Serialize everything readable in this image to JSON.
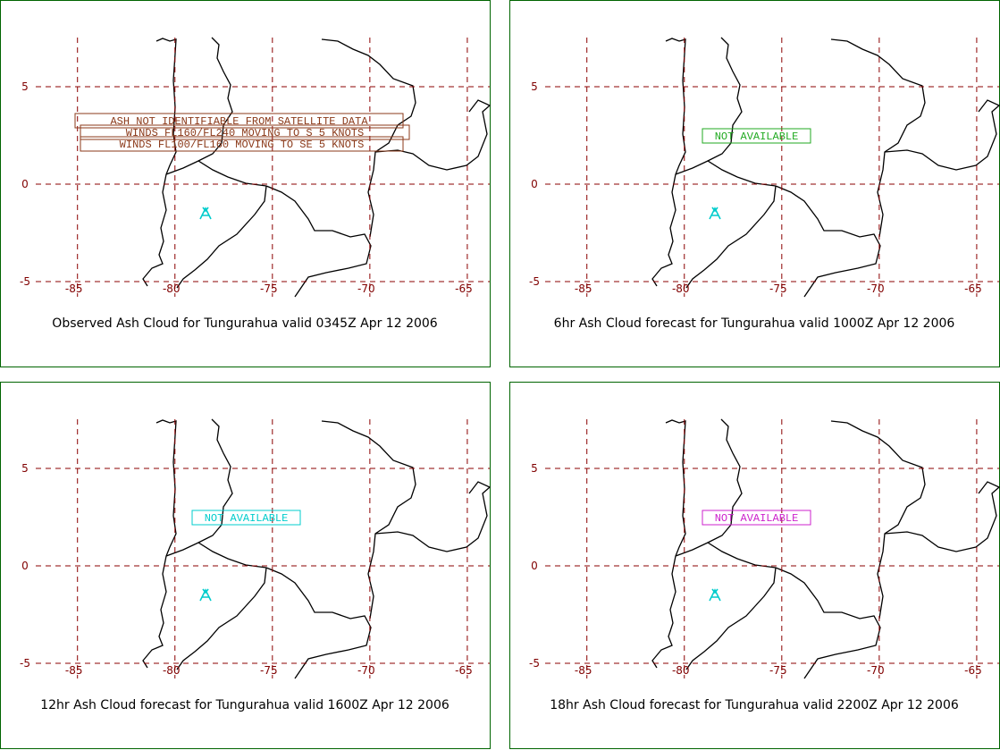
{
  "map": {
    "lonlim": [
      -87.6,
      -63.85
    ],
    "latlim": [
      -5.23,
      7.52
    ],
    "lon_ticks": [
      -85,
      -80,
      -75,
      -70,
      -65
    ],
    "lat_ticks": [
      5,
      0,
      -5
    ]
  },
  "panels": [
    {
      "caption": "Observed Ash Cloud for Tungurahua valid 0345Z Apr 12 2006",
      "annotations": [
        "ASH NOT IDENTIFIABLE FROM SATELLITE DATA",
        "WINDS FL160/FL240 MOVING TO S 5 KNOTS",
        "WINDS FL100/FL160 MOVING TO SE 5 KNOTS"
      ],
      "annotation_color": "#8b3a1a"
    },
    {
      "caption": "6hr Ash Cloud forecast for Tungurahua valid 1000Z Apr 12 2006",
      "annotations": [
        "NOT AVAILABLE"
      ],
      "annotation_color": "#22aa22"
    },
    {
      "caption": "12hr Ash Cloud forecast for Tungurahua valid 1600Z Apr 12 2006",
      "annotations": [
        "NOT AVAILABLE"
      ],
      "annotation_color": "#00cccc"
    },
    {
      "caption": "18hr Ash Cloud forecast for Tungurahua valid 2200Z Apr 12 2006",
      "annotations": [
        "NOT AVAILABLE"
      ],
      "annotation_color": "#cc22cc"
    }
  ]
}
